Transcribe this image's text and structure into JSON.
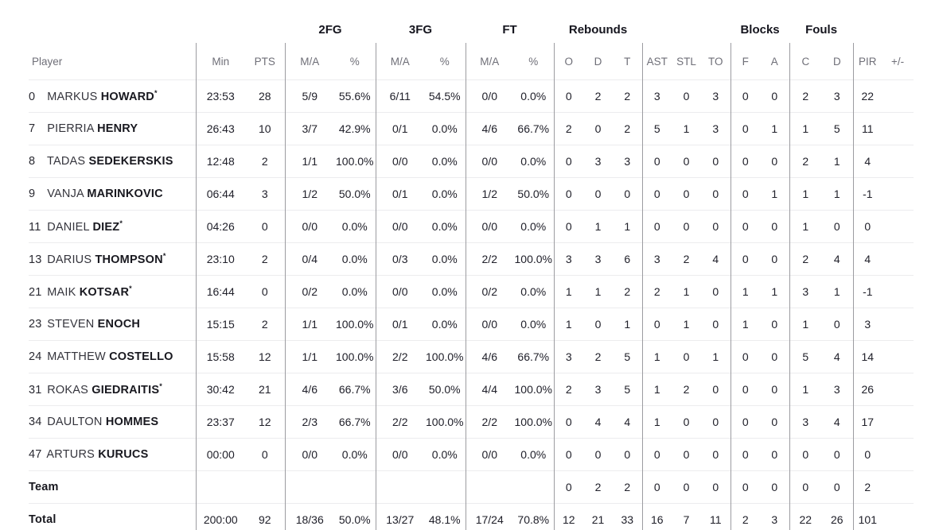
{
  "table": {
    "group_headers": {
      "fg2": "2FG",
      "fg3": "3FG",
      "ft": "FT",
      "rebounds": "Rebounds",
      "blocks": "Blocks",
      "fouls": "Fouls"
    },
    "columns": [
      "Player",
      "Min",
      "PTS",
      "M/A",
      "%",
      "M/A",
      "%",
      "M/A",
      "%",
      "O",
      "D",
      "T",
      "AST",
      "STL",
      "TO",
      "F",
      "A",
      "C",
      "D",
      "PIR",
      "+/-"
    ],
    "starter_marker": "*",
    "rows": [
      {
        "num": "0",
        "first": "MARKUS",
        "last": "HOWARD",
        "starter": true,
        "cells": [
          "23:53",
          "28",
          "5/9",
          "55.6%",
          "6/11",
          "54.5%",
          "0/0",
          "0.0%",
          "0",
          "2",
          "2",
          "3",
          "0",
          "3",
          "0",
          "0",
          "2",
          "3",
          "22",
          ""
        ]
      },
      {
        "num": "7",
        "first": "PIERRIA",
        "last": "HENRY",
        "starter": false,
        "cells": [
          "26:43",
          "10",
          "3/7",
          "42.9%",
          "0/1",
          "0.0%",
          "4/6",
          "66.7%",
          "2",
          "0",
          "2",
          "5",
          "1",
          "3",
          "0",
          "1",
          "1",
          "5",
          "11",
          ""
        ]
      },
      {
        "num": "8",
        "first": "TADAS",
        "last": "SEDEKERSKIS",
        "starter": false,
        "cells": [
          "12:48",
          "2",
          "1/1",
          "100.0%",
          "0/0",
          "0.0%",
          "0/0",
          "0.0%",
          "0",
          "3",
          "3",
          "0",
          "0",
          "0",
          "0",
          "0",
          "2",
          "1",
          "4",
          ""
        ]
      },
      {
        "num": "9",
        "first": "VANJA",
        "last": "MARINKOVIC",
        "starter": false,
        "cells": [
          "06:44",
          "3",
          "1/2",
          "50.0%",
          "0/1",
          "0.0%",
          "1/2",
          "50.0%",
          "0",
          "0",
          "0",
          "0",
          "0",
          "0",
          "0",
          "1",
          "1",
          "1",
          "-1",
          ""
        ]
      },
      {
        "num": "11",
        "first": "DANIEL",
        "last": "DIEZ",
        "starter": true,
        "cells": [
          "04:26",
          "0",
          "0/0",
          "0.0%",
          "0/0",
          "0.0%",
          "0/0",
          "0.0%",
          "0",
          "1",
          "1",
          "0",
          "0",
          "0",
          "0",
          "0",
          "1",
          "0",
          "0",
          ""
        ]
      },
      {
        "num": "13",
        "first": "DARIUS",
        "last": "THOMPSON",
        "starter": true,
        "cells": [
          "23:10",
          "2",
          "0/4",
          "0.0%",
          "0/3",
          "0.0%",
          "2/2",
          "100.0%",
          "3",
          "3",
          "6",
          "3",
          "2",
          "4",
          "0",
          "0",
          "2",
          "4",
          "4",
          ""
        ]
      },
      {
        "num": "21",
        "first": "MAIK",
        "last": "KOTSAR",
        "starter": true,
        "cells": [
          "16:44",
          "0",
          "0/2",
          "0.0%",
          "0/0",
          "0.0%",
          "0/2",
          "0.0%",
          "1",
          "1",
          "2",
          "2",
          "1",
          "0",
          "1",
          "1",
          "3",
          "1",
          "-1",
          ""
        ]
      },
      {
        "num": "23",
        "first": "STEVEN",
        "last": "ENOCH",
        "starter": false,
        "cells": [
          "15:15",
          "2",
          "1/1",
          "100.0%",
          "0/1",
          "0.0%",
          "0/0",
          "0.0%",
          "1",
          "0",
          "1",
          "0",
          "1",
          "0",
          "1",
          "0",
          "1",
          "0",
          "3",
          ""
        ]
      },
      {
        "num": "24",
        "first": "MATTHEW",
        "last": "COSTELLO",
        "starter": false,
        "cells": [
          "15:58",
          "12",
          "1/1",
          "100.0%",
          "2/2",
          "100.0%",
          "4/6",
          "66.7%",
          "3",
          "2",
          "5",
          "1",
          "0",
          "1",
          "0",
          "0",
          "5",
          "4",
          "14",
          ""
        ]
      },
      {
        "num": "31",
        "first": "ROKAS",
        "last": "GIEDRAITIS",
        "starter": true,
        "cells": [
          "30:42",
          "21",
          "4/6",
          "66.7%",
          "3/6",
          "50.0%",
          "4/4",
          "100.0%",
          "2",
          "3",
          "5",
          "1",
          "2",
          "0",
          "0",
          "0",
          "1",
          "3",
          "26",
          ""
        ]
      },
      {
        "num": "34",
        "first": "DAULTON",
        "last": "HOMMES",
        "starter": false,
        "cells": [
          "23:37",
          "12",
          "2/3",
          "66.7%",
          "2/2",
          "100.0%",
          "2/2",
          "100.0%",
          "0",
          "4",
          "4",
          "1",
          "0",
          "0",
          "0",
          "0",
          "3",
          "4",
          "17",
          ""
        ]
      },
      {
        "num": "47",
        "first": "ARTURS",
        "last": "KURUCS",
        "starter": false,
        "cells": [
          "00:00",
          "0",
          "0/0",
          "0.0%",
          "0/0",
          "0.0%",
          "0/0",
          "0.0%",
          "0",
          "0",
          "0",
          "0",
          "0",
          "0",
          "0",
          "0",
          "0",
          "0",
          "0",
          ""
        ]
      },
      {
        "label": "Team",
        "cells": [
          "",
          "",
          "",
          "",
          "",
          "",
          "",
          "",
          "0",
          "2",
          "2",
          "0",
          "0",
          "0",
          "0",
          "0",
          "0",
          "0",
          "2",
          ""
        ]
      },
      {
        "label": "Total",
        "cells": [
          "200:00",
          "92",
          "18/36",
          "50.0%",
          "13/27",
          "48.1%",
          "17/24",
          "70.8%",
          "12",
          "21",
          "33",
          "16",
          "7",
          "11",
          "2",
          "3",
          "22",
          "26",
          "101",
          ""
        ]
      }
    ]
  }
}
